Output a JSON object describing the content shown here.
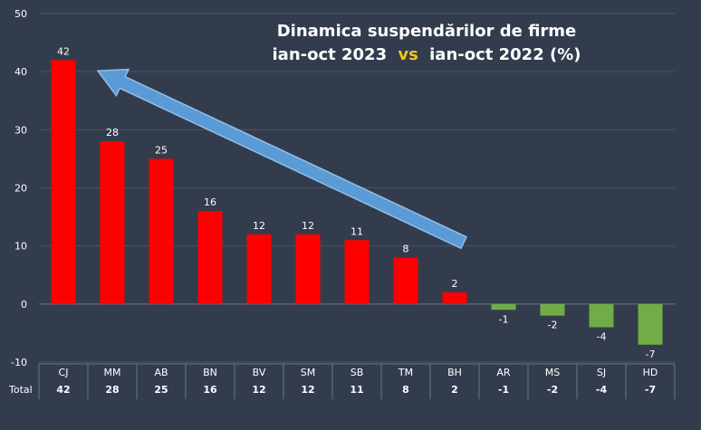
{
  "chart_data": {
    "type": "bar",
    "title_line1": "Dinamica suspendărilor de firme",
    "title_line2_a": "ian-oct 2023",
    "title_line2_vs": "vs",
    "title_line2_b": "ian-oct 2022 (%)",
    "categories": [
      "CJ",
      "MM",
      "AB",
      "BN",
      "BV",
      "SM",
      "SB",
      "TM",
      "BH",
      "AR",
      "MS",
      "SJ",
      "HD"
    ],
    "values": [
      42,
      28,
      25,
      16,
      12,
      12,
      11,
      8,
      2,
      -1,
      -2,
      -4,
      -7
    ],
    "data_labels": [
      "42",
      "28",
      "25",
      "16",
      "12",
      "12",
      "11",
      "8",
      "2",
      "-1",
      "-2",
      "-4",
      "-7"
    ],
    "table_row_label": "Total",
    "table_values": [
      "42",
      "28",
      "25",
      "16",
      "12",
      "12",
      "11",
      "8",
      "2",
      "-1",
      "-2",
      "-4",
      "-7"
    ],
    "y_ticks": [
      "50",
      "40",
      "30",
      "20",
      "10",
      "0",
      "-10"
    ],
    "ylim": [
      -10,
      50
    ],
    "grid": true,
    "colors": {
      "positive": "#ff0000",
      "negative": "#70ad47",
      "arrow": "#5b9bd5",
      "vs": "#f5c518",
      "background": "#333c4d",
      "grid": "#4a5366",
      "text": "#ffffff"
    },
    "annotation": "arrow-from-BH-to-CJ"
  }
}
